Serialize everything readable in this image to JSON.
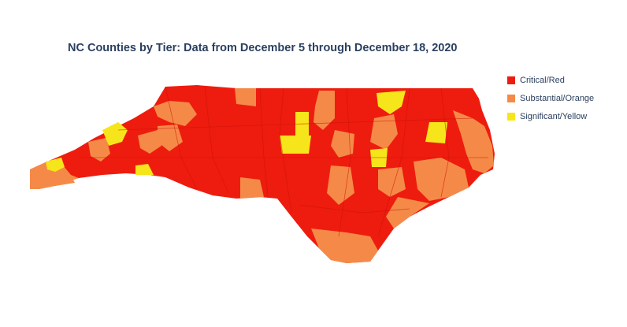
{
  "title": "NC Counties by Tier: Data from December 5 through December 18, 2020",
  "legend": {
    "items": [
      {
        "name": "Critical/Red",
        "color": "#ee1c0e"
      },
      {
        "name": "Substantial/Orange",
        "color": "#f58a48"
      },
      {
        "name": "Significant/Yellow",
        "color": "#f6e51a"
      }
    ]
  }
}
